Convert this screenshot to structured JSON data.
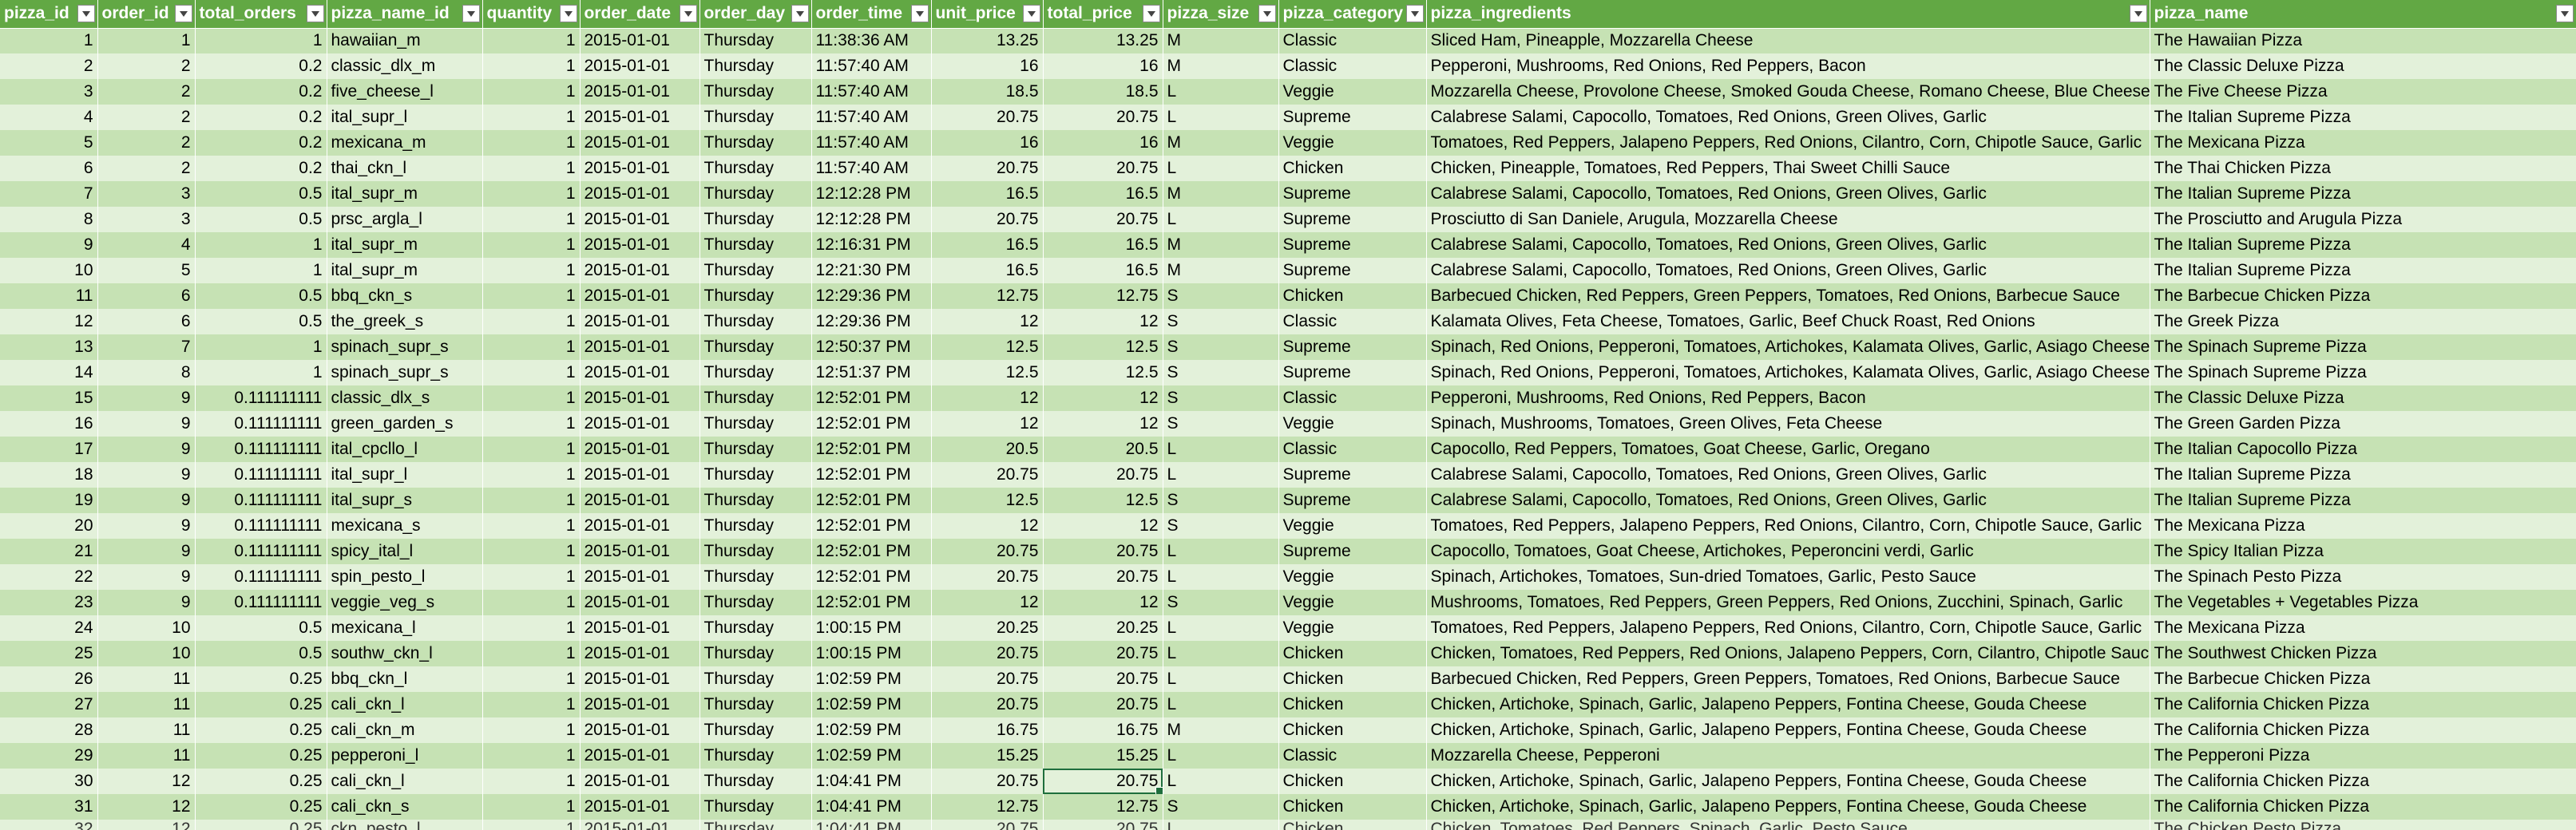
{
  "columns": [
    "pizza_id",
    "order_id",
    "total_orders",
    "pizza_name_id",
    "quantity",
    "order_date",
    "order_day",
    "order_time",
    "unit_price",
    "total_price",
    "pizza_size",
    "pizza_category",
    "pizza_ingredients",
    "pizza_name"
  ],
  "rows": [
    [
      "1",
      "1",
      "1",
      "hawaiian_m",
      "1",
      "2015-01-01",
      "Thursday",
      "11:38:36 AM",
      "13.25",
      "13.25",
      "M",
      "Classic",
      "Sliced Ham, Pineapple, Mozzarella Cheese",
      "The Hawaiian Pizza"
    ],
    [
      "2",
      "2",
      "0.2",
      "classic_dlx_m",
      "1",
      "2015-01-01",
      "Thursday",
      "11:57:40 AM",
      "16",
      "16",
      "M",
      "Classic",
      "Pepperoni, Mushrooms, Red Onions, Red Peppers, Bacon",
      "The Classic Deluxe Pizza"
    ],
    [
      "3",
      "2",
      "0.2",
      "five_cheese_l",
      "1",
      "2015-01-01",
      "Thursday",
      "11:57:40 AM",
      "18.5",
      "18.5",
      "L",
      "Veggie",
      "Mozzarella Cheese, Provolone Cheese, Smoked Gouda Cheese, Romano Cheese, Blue Cheese, Garlic",
      "The Five Cheese Pizza"
    ],
    [
      "4",
      "2",
      "0.2",
      "ital_supr_l",
      "1",
      "2015-01-01",
      "Thursday",
      "11:57:40 AM",
      "20.75",
      "20.75",
      "L",
      "Supreme",
      "Calabrese Salami, Capocollo, Tomatoes, Red Onions, Green Olives, Garlic",
      "The Italian Supreme Pizza"
    ],
    [
      "5",
      "2",
      "0.2",
      "mexicana_m",
      "1",
      "2015-01-01",
      "Thursday",
      "11:57:40 AM",
      "16",
      "16",
      "M",
      "Veggie",
      "Tomatoes, Red Peppers, Jalapeno Peppers, Red Onions, Cilantro, Corn, Chipotle Sauce, Garlic",
      "The Mexicana Pizza"
    ],
    [
      "6",
      "2",
      "0.2",
      "thai_ckn_l",
      "1",
      "2015-01-01",
      "Thursday",
      "11:57:40 AM",
      "20.75",
      "20.75",
      "L",
      "Chicken",
      "Chicken, Pineapple, Tomatoes, Red Peppers, Thai Sweet Chilli Sauce",
      "The Thai Chicken Pizza"
    ],
    [
      "7",
      "3",
      "0.5",
      "ital_supr_m",
      "1",
      "2015-01-01",
      "Thursday",
      "12:12:28 PM",
      "16.5",
      "16.5",
      "M",
      "Supreme",
      "Calabrese Salami, Capocollo, Tomatoes, Red Onions, Green Olives, Garlic",
      "The Italian Supreme Pizza"
    ],
    [
      "8",
      "3",
      "0.5",
      "prsc_argla_l",
      "1",
      "2015-01-01",
      "Thursday",
      "12:12:28 PM",
      "20.75",
      "20.75",
      "L",
      "Supreme",
      "Prosciutto di San Daniele, Arugula, Mozzarella Cheese",
      "The Prosciutto and Arugula Pizza"
    ],
    [
      "9",
      "4",
      "1",
      "ital_supr_m",
      "1",
      "2015-01-01",
      "Thursday",
      "12:16:31 PM",
      "16.5",
      "16.5",
      "M",
      "Supreme",
      "Calabrese Salami, Capocollo, Tomatoes, Red Onions, Green Olives, Garlic",
      "The Italian Supreme Pizza"
    ],
    [
      "10",
      "5",
      "1",
      "ital_supr_m",
      "1",
      "2015-01-01",
      "Thursday",
      "12:21:30 PM",
      "16.5",
      "16.5",
      "M",
      "Supreme",
      "Calabrese Salami, Capocollo, Tomatoes, Red Onions, Green Olives, Garlic",
      "The Italian Supreme Pizza"
    ],
    [
      "11",
      "6",
      "0.5",
      "bbq_ckn_s",
      "1",
      "2015-01-01",
      "Thursday",
      "12:29:36 PM",
      "12.75",
      "12.75",
      "S",
      "Chicken",
      "Barbecued Chicken, Red Peppers, Green Peppers, Tomatoes, Red Onions, Barbecue Sauce",
      "The Barbecue Chicken Pizza"
    ],
    [
      "12",
      "6",
      "0.5",
      "the_greek_s",
      "1",
      "2015-01-01",
      "Thursday",
      "12:29:36 PM",
      "12",
      "12",
      "S",
      "Classic",
      "Kalamata Olives, Feta Cheese, Tomatoes, Garlic, Beef Chuck Roast, Red Onions",
      "The Greek Pizza"
    ],
    [
      "13",
      "7",
      "1",
      "spinach_supr_s",
      "1",
      "2015-01-01",
      "Thursday",
      "12:50:37 PM",
      "12.5",
      "12.5",
      "S",
      "Supreme",
      "Spinach, Red Onions, Pepperoni, Tomatoes, Artichokes, Kalamata Olives, Garlic, Asiago Cheese",
      "The Spinach Supreme Pizza"
    ],
    [
      "14",
      "8",
      "1",
      "spinach_supr_s",
      "1",
      "2015-01-01",
      "Thursday",
      "12:51:37 PM",
      "12.5",
      "12.5",
      "S",
      "Supreme",
      "Spinach, Red Onions, Pepperoni, Tomatoes, Artichokes, Kalamata Olives, Garlic, Asiago Cheese",
      "The Spinach Supreme Pizza"
    ],
    [
      "15",
      "9",
      "0.111111111",
      "classic_dlx_s",
      "1",
      "2015-01-01",
      "Thursday",
      "12:52:01 PM",
      "12",
      "12",
      "S",
      "Classic",
      "Pepperoni, Mushrooms, Red Onions, Red Peppers, Bacon",
      "The Classic Deluxe Pizza"
    ],
    [
      "16",
      "9",
      "0.111111111",
      "green_garden_s",
      "1",
      "2015-01-01",
      "Thursday",
      "12:52:01 PM",
      "12",
      "12",
      "S",
      "Veggie",
      "Spinach, Mushrooms, Tomatoes, Green Olives, Feta Cheese",
      "The Green Garden Pizza"
    ],
    [
      "17",
      "9",
      "0.111111111",
      "ital_cpcllo_l",
      "1",
      "2015-01-01",
      "Thursday",
      "12:52:01 PM",
      "20.5",
      "20.5",
      "L",
      "Classic",
      "Capocollo, Red Peppers, Tomatoes, Goat Cheese, Garlic, Oregano",
      "The Italian Capocollo Pizza"
    ],
    [
      "18",
      "9",
      "0.111111111",
      "ital_supr_l",
      "1",
      "2015-01-01",
      "Thursday",
      "12:52:01 PM",
      "20.75",
      "20.75",
      "L",
      "Supreme",
      "Calabrese Salami, Capocollo, Tomatoes, Red Onions, Green Olives, Garlic",
      "The Italian Supreme Pizza"
    ],
    [
      "19",
      "9",
      "0.111111111",
      "ital_supr_s",
      "1",
      "2015-01-01",
      "Thursday",
      "12:52:01 PM",
      "12.5",
      "12.5",
      "S",
      "Supreme",
      "Calabrese Salami, Capocollo, Tomatoes, Red Onions, Green Olives, Garlic",
      "The Italian Supreme Pizza"
    ],
    [
      "20",
      "9",
      "0.111111111",
      "mexicana_s",
      "1",
      "2015-01-01",
      "Thursday",
      "12:52:01 PM",
      "12",
      "12",
      "S",
      "Veggie",
      "Tomatoes, Red Peppers, Jalapeno Peppers, Red Onions, Cilantro, Corn, Chipotle Sauce, Garlic",
      "The Mexicana Pizza"
    ],
    [
      "21",
      "9",
      "0.111111111",
      "spicy_ital_l",
      "1",
      "2015-01-01",
      "Thursday",
      "12:52:01 PM",
      "20.75",
      "20.75",
      "L",
      "Supreme",
      "Capocollo, Tomatoes, Goat Cheese, Artichokes, Peperoncini verdi, Garlic",
      "The Spicy Italian Pizza"
    ],
    [
      "22",
      "9",
      "0.111111111",
      "spin_pesto_l",
      "1",
      "2015-01-01",
      "Thursday",
      "12:52:01 PM",
      "20.75",
      "20.75",
      "L",
      "Veggie",
      "Spinach, Artichokes, Tomatoes, Sun-dried Tomatoes, Garlic, Pesto Sauce",
      "The Spinach Pesto Pizza"
    ],
    [
      "23",
      "9",
      "0.111111111",
      "veggie_veg_s",
      "1",
      "2015-01-01",
      "Thursday",
      "12:52:01 PM",
      "12",
      "12",
      "S",
      "Veggie",
      "Mushrooms, Tomatoes, Red Peppers, Green Peppers, Red Onions, Zucchini, Spinach, Garlic",
      "The Vegetables + Vegetables Pizza"
    ],
    [
      "24",
      "10",
      "0.5",
      "mexicana_l",
      "1",
      "2015-01-01",
      "Thursday",
      "1:00:15 PM",
      "20.25",
      "20.25",
      "L",
      "Veggie",
      "Tomatoes, Red Peppers, Jalapeno Peppers, Red Onions, Cilantro, Corn, Chipotle Sauce, Garlic",
      "The Mexicana Pizza"
    ],
    [
      "25",
      "10",
      "0.5",
      "southw_ckn_l",
      "1",
      "2015-01-01",
      "Thursday",
      "1:00:15 PM",
      "20.75",
      "20.75",
      "L",
      "Chicken",
      "Chicken, Tomatoes, Red Peppers, Red Onions, Jalapeno Peppers, Corn, Cilantro, Chipotle Sauce",
      "The Southwest Chicken Pizza"
    ],
    [
      "26",
      "11",
      "0.25",
      "bbq_ckn_l",
      "1",
      "2015-01-01",
      "Thursday",
      "1:02:59 PM",
      "20.75",
      "20.75",
      "L",
      "Chicken",
      "Barbecued Chicken, Red Peppers, Green Peppers, Tomatoes, Red Onions, Barbecue Sauce",
      "The Barbecue Chicken Pizza"
    ],
    [
      "27",
      "11",
      "0.25",
      "cali_ckn_l",
      "1",
      "2015-01-01",
      "Thursday",
      "1:02:59 PM",
      "20.75",
      "20.75",
      "L",
      "Chicken",
      "Chicken, Artichoke, Spinach, Garlic, Jalapeno Peppers, Fontina Cheese, Gouda Cheese",
      "The California Chicken Pizza"
    ],
    [
      "28",
      "11",
      "0.25",
      "cali_ckn_m",
      "1",
      "2015-01-01",
      "Thursday",
      "1:02:59 PM",
      "16.75",
      "16.75",
      "M",
      "Chicken",
      "Chicken, Artichoke, Spinach, Garlic, Jalapeno Peppers, Fontina Cheese, Gouda Cheese",
      "The California Chicken Pizza"
    ],
    [
      "29",
      "11",
      "0.25",
      "pepperoni_l",
      "1",
      "2015-01-01",
      "Thursday",
      "1:02:59 PM",
      "15.25",
      "15.25",
      "L",
      "Classic",
      "Mozzarella Cheese, Pepperoni",
      "The Pepperoni Pizza"
    ],
    [
      "30",
      "12",
      "0.25",
      "cali_ckn_l",
      "1",
      "2015-01-01",
      "Thursday",
      "1:04:41 PM",
      "20.75",
      "20.75",
      "L",
      "Chicken",
      "Chicken, Artichoke, Spinach, Garlic, Jalapeno Peppers, Fontina Cheese, Gouda Cheese",
      "The California Chicken Pizza"
    ],
    [
      "31",
      "12",
      "0.25",
      "cali_ckn_s",
      "1",
      "2015-01-01",
      "Thursday",
      "1:04:41 PM",
      "12.75",
      "12.75",
      "S",
      "Chicken",
      "Chicken, Artichoke, Spinach, Garlic, Jalapeno Peppers, Fontina Cheese, Gouda Cheese",
      "The California Chicken Pizza"
    ],
    [
      "32",
      "12",
      "0.25",
      "ckn_pesto_l",
      "1",
      "2015-01-01",
      "Thursday",
      "1:04:41 PM",
      "20.75",
      "20.75",
      "L",
      "Chicken",
      "Chicken, Tomatoes, Red Peppers, Spinach, Garlic, Pesto Sauce",
      "The Chicken Pesto Pizza"
    ]
  ],
  "active_cell": {
    "row": 29,
    "col": 9
  },
  "filter_icon": "dropdown-arrow-icon",
  "colors": {
    "header": "#62a844",
    "band_dark": "#c6e2b4",
    "band_light": "#e3f1da",
    "selection": "#1e6e3c"
  }
}
